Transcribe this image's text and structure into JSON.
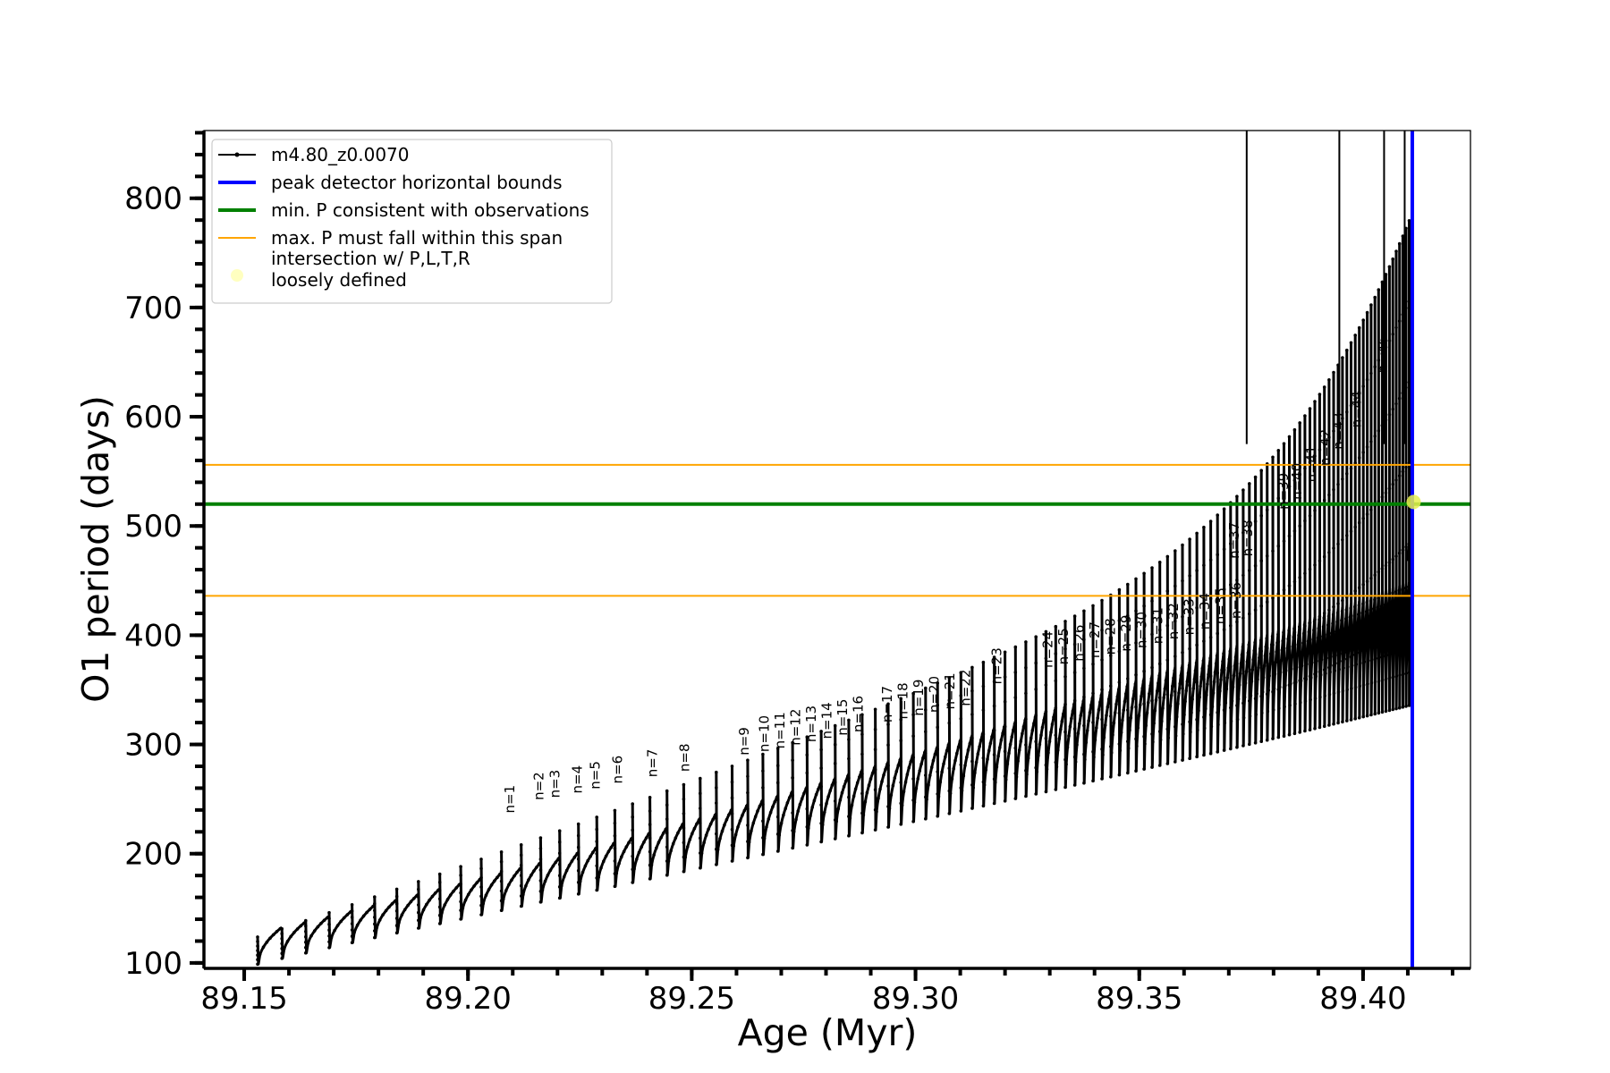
{
  "chart_data": {
    "type": "line",
    "xlabel": "Age (Myr)",
    "ylabel": "O1 period (days)",
    "xlim": [
      89.141,
      89.424
    ],
    "ylim": [
      95,
      862
    ],
    "x_ticks": [
      89.15,
      89.2,
      89.25,
      89.3,
      89.35,
      89.4
    ],
    "x_tick_labels": [
      "89.15",
      "89.20",
      "89.25",
      "89.30",
      "89.35",
      "89.40"
    ],
    "y_ticks": [
      100,
      200,
      300,
      400,
      500,
      600,
      700,
      800
    ],
    "y_tick_labels": [
      "100",
      "200",
      "300",
      "400",
      "500",
      "600",
      "700",
      "800"
    ],
    "grid": false,
    "legend_position": "top-left",
    "legend": [
      {
        "label": "m4.80_z0.0070",
        "kind": "line-marker",
        "color": "#000000"
      },
      {
        "label": "peak detector horizontal bounds",
        "kind": "line",
        "color": "#0000ff"
      },
      {
        "label": "min. P consistent with observations",
        "kind": "line",
        "color": "#008000"
      },
      {
        "label": "max. P must fall within this span",
        "kind": "line",
        "color": "#ffa500"
      },
      {
        "label": "intersection w/ P,L,T,R",
        "label2": "loosely defined",
        "kind": "dot",
        "color": "#ffffc0"
      }
    ],
    "series": [
      {
        "name": "m4.80_z0.0070",
        "color": "#000000",
        "x_start": 89.153,
        "x_end": 89.411,
        "pulse_count": 112,
        "lower_envelope_start": 108,
        "upper_envelope_start": 130
      }
    ],
    "horizontal_lines": [
      {
        "name": "min-period-line",
        "y": 520,
        "color": "#008000"
      },
      {
        "name": "max-period-upper-line",
        "y": 556,
        "color": "#ffa500"
      },
      {
        "name": "max-period-lower-line",
        "y": 436,
        "color": "#ffa500"
      }
    ],
    "vertical_lines": [
      {
        "name": "peak-detector-bound",
        "x": 89.411,
        "color": "#0000ff"
      },
      {
        "name": "pulse-marker-1",
        "x": 89.374,
        "color": "#000000"
      },
      {
        "name": "pulse-marker-2",
        "x": 89.3947,
        "color": "#000000"
      },
      {
        "name": "pulse-marker-3",
        "x": 89.4047,
        "color": "#000000"
      },
      {
        "name": "pulse-marker-4",
        "x": 89.4093,
        "color": "#000000"
      }
    ],
    "intersection_point": {
      "x": 89.4113,
      "y": 522,
      "color": "#e6f050"
    },
    "annotations": [
      {
        "text": "n=1",
        "x": 89.2104,
        "y": 237
      },
      {
        "text": "n=2",
        "x": 89.2168,
        "y": 249
      },
      {
        "text": "n=3",
        "x": 89.2204,
        "y": 251
      },
      {
        "text": "n=4",
        "x": 89.2254,
        "y": 255
      },
      {
        "text": "n=5",
        "x": 89.2294,
        "y": 259
      },
      {
        "text": "n=6",
        "x": 89.2344,
        "y": 264
      },
      {
        "text": "n=7",
        "x": 89.2422,
        "y": 270
      },
      {
        "text": "n=8",
        "x": 89.2494,
        "y": 275
      },
      {
        "text": "n=9",
        "x": 89.2627,
        "y": 290
      },
      {
        "text": "n=10",
        "x": 89.2672,
        "y": 293
      },
      {
        "text": "n=11",
        "x": 89.2707,
        "y": 296
      },
      {
        "text": "n=12",
        "x": 89.2742,
        "y": 299
      },
      {
        "text": "n=13",
        "x": 89.2777,
        "y": 302
      },
      {
        "text": "n=14",
        "x": 89.2812,
        "y": 305
      },
      {
        "text": "n=15",
        "x": 89.2847,
        "y": 308
      },
      {
        "text": "n=16",
        "x": 89.2882,
        "y": 311
      },
      {
        "text": "n=17",
        "x": 89.2947,
        "y": 320
      },
      {
        "text": "n=18",
        "x": 89.2982,
        "y": 323
      },
      {
        "text": "n=19",
        "x": 89.3017,
        "y": 326
      },
      {
        "text": "n=20",
        "x": 89.3052,
        "y": 329
      },
      {
        "text": "n=21",
        "x": 89.3087,
        "y": 332
      },
      {
        "text": "n=22",
        "x": 89.3122,
        "y": 335
      },
      {
        "text": "n=23",
        "x": 89.3192,
        "y": 355
      },
      {
        "text": "n=24",
        "x": 89.3306,
        "y": 370
      },
      {
        "text": "n=25",
        "x": 89.3341,
        "y": 373
      },
      {
        "text": "n=26",
        "x": 89.3376,
        "y": 376
      },
      {
        "text": "n=27",
        "x": 89.3411,
        "y": 379
      },
      {
        "text": "n=28",
        "x": 89.3446,
        "y": 382
      },
      {
        "text": "n=29",
        "x": 89.3481,
        "y": 385
      },
      {
        "text": "n=30",
        "x": 89.3516,
        "y": 388
      },
      {
        "text": "n=31",
        "x": 89.3551,
        "y": 392
      },
      {
        "text": "n=32",
        "x": 89.3586,
        "y": 396
      },
      {
        "text": "n=33",
        "x": 89.3621,
        "y": 400
      },
      {
        "text": "n=34",
        "x": 89.3656,
        "y": 405
      },
      {
        "text": "n=35",
        "x": 89.3691,
        "y": 410
      },
      {
        "text": "n=36",
        "x": 89.3726,
        "y": 415
      },
      {
        "text": "n=37",
        "x": 89.3722,
        "y": 470
      },
      {
        "text": "n=38",
        "x": 89.3752,
        "y": 472
      },
      {
        "text": "n=39",
        "x": 89.3832,
        "y": 515
      },
      {
        "text": "n=40",
        "x": 89.3862,
        "y": 524
      },
      {
        "text": "n=41",
        "x": 89.3895,
        "y": 540
      },
      {
        "text": "n=42",
        "x": 89.3925,
        "y": 555
      },
      {
        "text": "n=43",
        "x": 89.3955,
        "y": 570
      },
      {
        "text": "n=44",
        "x": 89.3995,
        "y": 590
      },
      {
        "text": "n=46",
        "x": 89.4054,
        "y": 640
      }
    ]
  }
}
